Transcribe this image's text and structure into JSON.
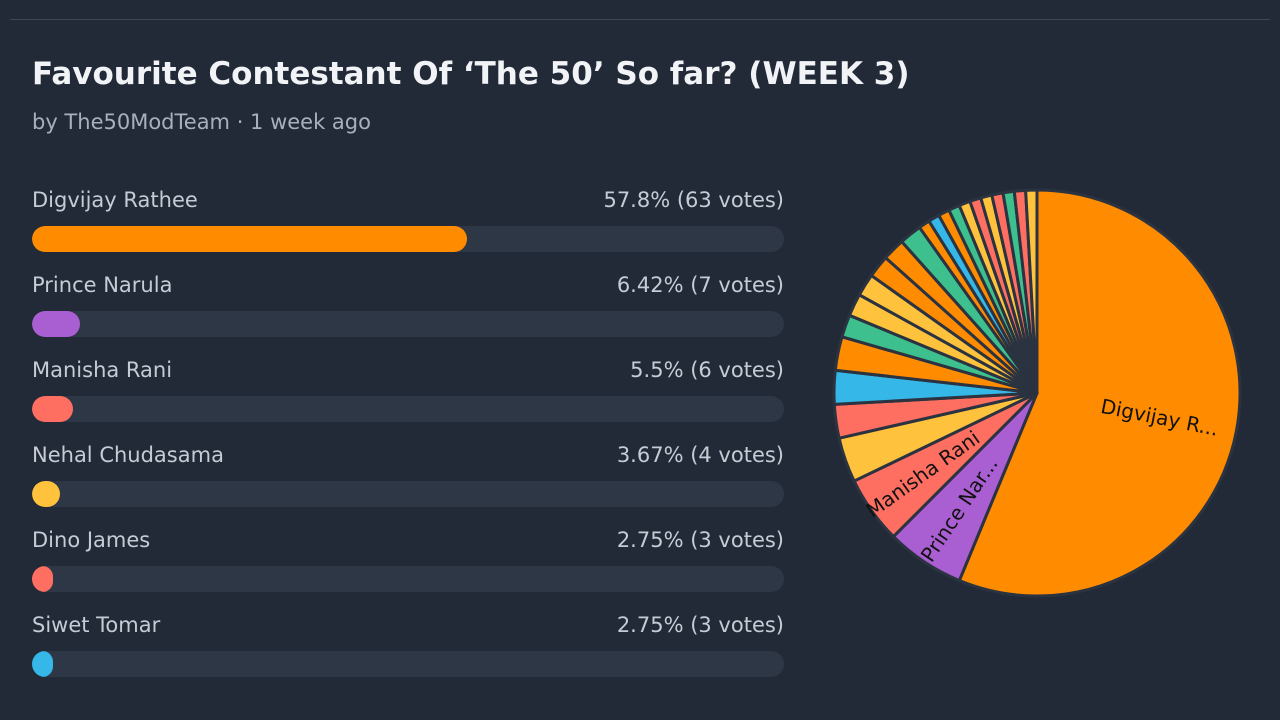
{
  "poll": {
    "title": "Favourite Contestant Of ‘The 50’ So far? (WEEK 3)",
    "meta": "by The50ModTeam · 1 week ago"
  },
  "options": [
    {
      "name": "Digvijay Rathee",
      "result": "57.8% (63 votes)",
      "percent": 57.8,
      "color": "#ff8c00"
    },
    {
      "name": "Prince Narula",
      "result": "6.42% (7 votes)",
      "percent": 6.42,
      "color": "#a95fd1"
    },
    {
      "name": "Manisha Rani",
      "result": "5.5% (6 votes)",
      "percent": 5.5,
      "color": "#ff6f61"
    },
    {
      "name": "Nehal Chudasama",
      "result": "3.67% (4 votes)",
      "percent": 3.67,
      "color": "#ffc23d"
    },
    {
      "name": "Dino James",
      "result": "2.75% (3 votes)",
      "percent": 2.75,
      "color": "#ff6f61"
    },
    {
      "name": "Siwet Tomar",
      "result": "2.75% (3 votes)",
      "percent": 2.75,
      "color": "#35b7e8"
    }
  ],
  "chart_data": {
    "type": "pie",
    "labels": [
      "Digvijay R...",
      "Prince Nar...",
      "Manisha Rani"
    ],
    "slices": [
      {
        "value": 63,
        "color": "#ff8c00",
        "label": "Digvijay R..."
      },
      {
        "value": 7,
        "color": "#a95fd1",
        "label": "Prince Nar..."
      },
      {
        "value": 6,
        "color": "#ff6f61",
        "label": "Manisha Rani"
      },
      {
        "value": 4,
        "color": "#ffc23d"
      },
      {
        "value": 3,
        "color": "#ff6f61"
      },
      {
        "value": 3,
        "color": "#35b7e8"
      },
      {
        "value": 3,
        "color": "#ff8c00"
      },
      {
        "value": 2,
        "color": "#3dbf8e"
      },
      {
        "value": 2,
        "color": "#ffc23d"
      },
      {
        "value": 2,
        "color": "#ffc23d"
      },
      {
        "value": 2,
        "color": "#ff8c00"
      },
      {
        "value": 2,
        "color": "#ff8c00"
      },
      {
        "value": 2,
        "color": "#3dbf8e"
      },
      {
        "value": 1,
        "color": "#ff8c00"
      },
      {
        "value": 1,
        "color": "#35b7e8"
      },
      {
        "value": 1,
        "color": "#ff8c00"
      },
      {
        "value": 1,
        "color": "#3dbf8e"
      },
      {
        "value": 1,
        "color": "#ffc23d"
      },
      {
        "value": 1,
        "color": "#ff6f61"
      },
      {
        "value": 1,
        "color": "#ffc23d"
      },
      {
        "value": 1,
        "color": "#ff6f61"
      },
      {
        "value": 1,
        "color": "#3dbf8e"
      },
      {
        "value": 1,
        "color": "#ff6f61"
      },
      {
        "value": 1,
        "color": "#ffc23d"
      }
    ],
    "border_color": "#2b3340"
  }
}
